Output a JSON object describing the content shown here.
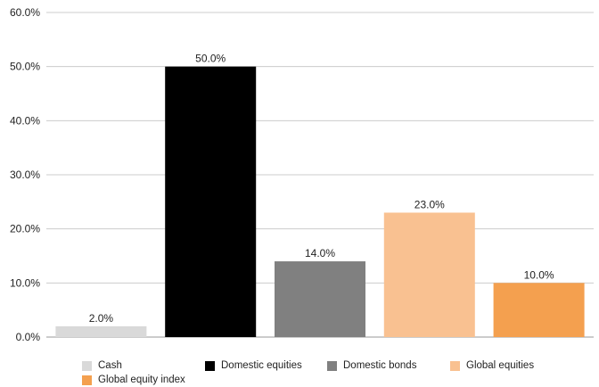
{
  "chart_data": {
    "type": "bar",
    "title": "",
    "xlabel": "",
    "ylabel": "",
    "ylim": [
      0,
      60
    ],
    "yticks": [
      "0.0%",
      "10.0%",
      "20.0%",
      "30.0%",
      "40.0%",
      "50.0%",
      "60.0%"
    ],
    "grid": true,
    "legend_position": "bottom",
    "categories": [
      "Cash",
      "Domestic equities",
      "Domestic bonds",
      "Global equities",
      "Global equity index"
    ],
    "values": [
      2.0,
      50.0,
      14.0,
      23.0,
      10.0
    ],
    "data_labels": [
      "2.0%",
      "50.0%",
      "14.0%",
      "23.0%",
      "10.0%"
    ],
    "colors": [
      "#d9d9d9",
      "#000000",
      "#808080",
      "#f9c191",
      "#f4a04f"
    ]
  }
}
